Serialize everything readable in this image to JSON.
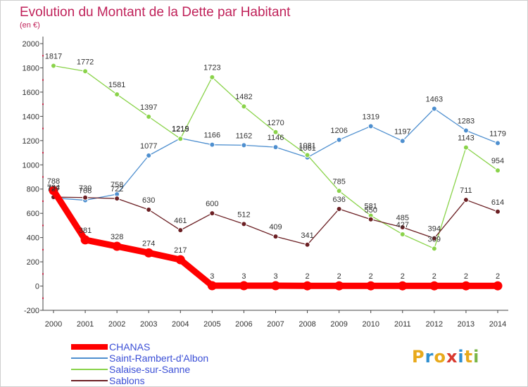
{
  "header": {
    "title": "Evolution du Montant de la Dette par Habitant",
    "unit": "(en €)"
  },
  "logo": {
    "letters": [
      "P",
      "r",
      "o",
      "x",
      "i",
      "t",
      "i"
    ],
    "colors": [
      "#e8a91b",
      "#2f8fd0",
      "#e8a91b",
      "#d9392f",
      "#2f8fd0",
      "#e8a91b",
      "#7ab648"
    ]
  },
  "chart_data": {
    "type": "line",
    "title": "Evolution du Montant de la Dette par Habitant",
    "ylabel": "(en €)",
    "x": [
      "2000",
      "2001",
      "2002",
      "2003",
      "2004",
      "2005",
      "2006",
      "2007",
      "2008",
      "2009",
      "2010",
      "2011",
      "2012",
      "2013",
      "2014"
    ],
    "ylim": [
      -200,
      2000
    ],
    "yticks": [
      -200,
      0,
      200,
      400,
      600,
      800,
      1000,
      1200,
      1400,
      1600,
      1800,
      2000
    ],
    "grid": false,
    "legend_position": "bottom-left",
    "series": [
      {
        "name": "CHANAS",
        "color": "#ff0000",
        "values": [
          788,
          381,
          328,
          274,
          217,
          3,
          3,
          3,
          2,
          2,
          2,
          2,
          2,
          2,
          2
        ]
      },
      {
        "name": "Saint-Rambert-d'Albon",
        "color": "#4e8fcf",
        "values": [
          727,
          708,
          758,
          1077,
          1219,
          1166,
          1162,
          1146,
          1061,
          1206,
          1319,
          1197,
          1463,
          1283,
          1179
        ]
      },
      {
        "name": "Salaise-sur-Sanne",
        "color": "#8ad34a",
        "values": [
          1817,
          1772,
          1581,
          1397,
          1215,
          1723,
          1482,
          1270,
          1081,
          785,
          581,
          427,
          309,
          1143,
          954
        ]
      },
      {
        "name": "Sablons",
        "color": "#6b1f23",
        "values": [
          734,
          730,
          722,
          630,
          461,
          600,
          512,
          409,
          341,
          636,
          550,
          485,
          394,
          711,
          614
        ]
      }
    ]
  }
}
